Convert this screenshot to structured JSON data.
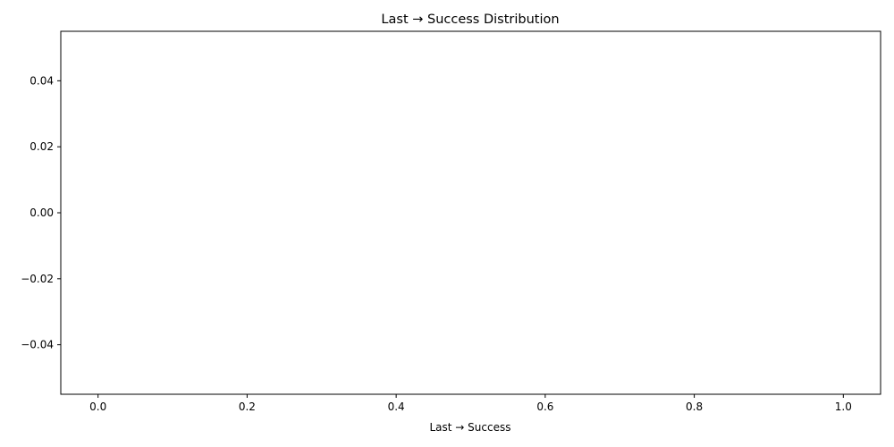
{
  "chart_data": {
    "type": "bar",
    "title": "Last → Success Distribution",
    "xlabel": "Last → Success",
    "ylabel": "",
    "x": [],
    "values": [],
    "xlim": [
      -0.05,
      1.05
    ],
    "ylim": [
      -0.055,
      0.055
    ],
    "xticks": [
      "0.0",
      "0.2",
      "0.4",
      "0.6",
      "0.8",
      "1.0"
    ],
    "yticks": [
      "0.04",
      "0.02",
      "0.00",
      "−0.02",
      "−0.04"
    ],
    "grid": false,
    "legend": "none"
  }
}
